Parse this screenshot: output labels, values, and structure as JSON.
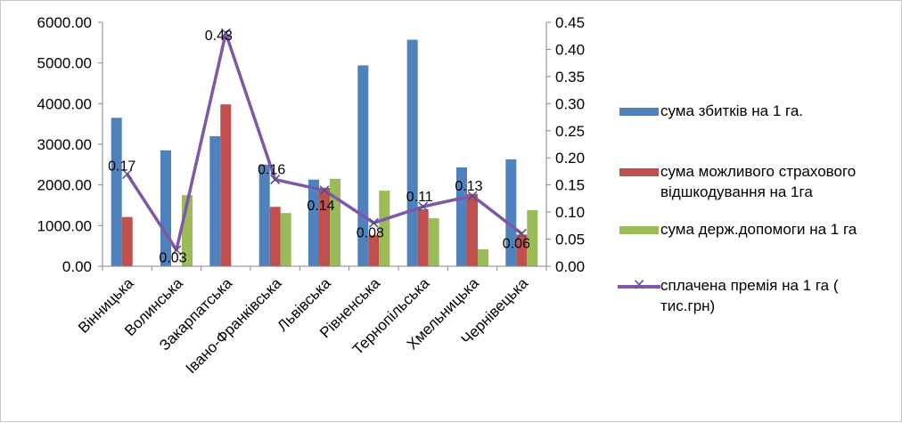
{
  "chart_data": {
    "type": "bar+line",
    "title": "",
    "categories": [
      "Вінницька",
      "Волинська",
      "Закарпатська",
      "Івано-Франківська",
      "Львівська",
      "Рівненська",
      "Тернопільська",
      "Хмельницька",
      "Чернівецька"
    ],
    "y_left": {
      "range": [
        0,
        6000
      ],
      "ticks": [
        "0.00",
        "1000.00",
        "2000.00",
        "3000.00",
        "4000.00",
        "5000.00",
        "6000.00"
      ]
    },
    "y_right": {
      "range": [
        0,
        0.45
      ],
      "ticks": [
        "0.00",
        "0.05",
        "0.10",
        "0.15",
        "0.20",
        "0.25",
        "0.30",
        "0.35",
        "0.40",
        "0.45"
      ]
    },
    "series": [
      {
        "name": "сума збитків на 1 га.",
        "type": "bar",
        "axis": "left",
        "color": "#4f81bd",
        "values": [
          3650,
          2850,
          3200,
          2500,
          2130,
          4940,
          5570,
          2430,
          2630
        ]
      },
      {
        "name": "сума можливого страхового відшкодування на 1га",
        "type": "bar",
        "axis": "left",
        "color": "#c0504d",
        "values": [
          1210,
          0,
          3980,
          1460,
          1930,
          760,
          1400,
          1780,
          780
        ]
      },
      {
        "name": "сума держ.допомоги на 1 га",
        "type": "bar",
        "axis": "left",
        "color": "#9bbb59",
        "values": [
          0,
          1750,
          0,
          1310,
          2150,
          1860,
          1180,
          420,
          1380
        ]
      },
      {
        "name": "сплачена премія на 1 га ( тис.грн)",
        "type": "line",
        "axis": "right",
        "color": "#7e57a8",
        "values": [
          0.17,
          0.03,
          0.43,
          0.16,
          0.14,
          0.08,
          0.11,
          0.13,
          0.06
        ],
        "data_labels": [
          "0.17",
          "0.03",
          "0.43",
          "0.16",
          "0.14",
          "0.08",
          "0.11",
          "0.13",
          "0.06"
        ]
      }
    ],
    "legend": {
      "position": "right",
      "items": [
        {
          "label": "сума збитків на 1 га.",
          "kind": "bar",
          "color": "#4f81bd"
        },
        {
          "label": "сума можливого страхового відшкодування на 1га",
          "kind": "bar",
          "color": "#c0504d"
        },
        {
          "label": "сума держ.допомоги на 1 га",
          "kind": "bar",
          "color": "#9bbb59"
        },
        {
          "label": "сплачена премія на 1 га ( тис.грн)",
          "kind": "line",
          "color": "#7e57a8"
        }
      ]
    },
    "grid": false
  }
}
